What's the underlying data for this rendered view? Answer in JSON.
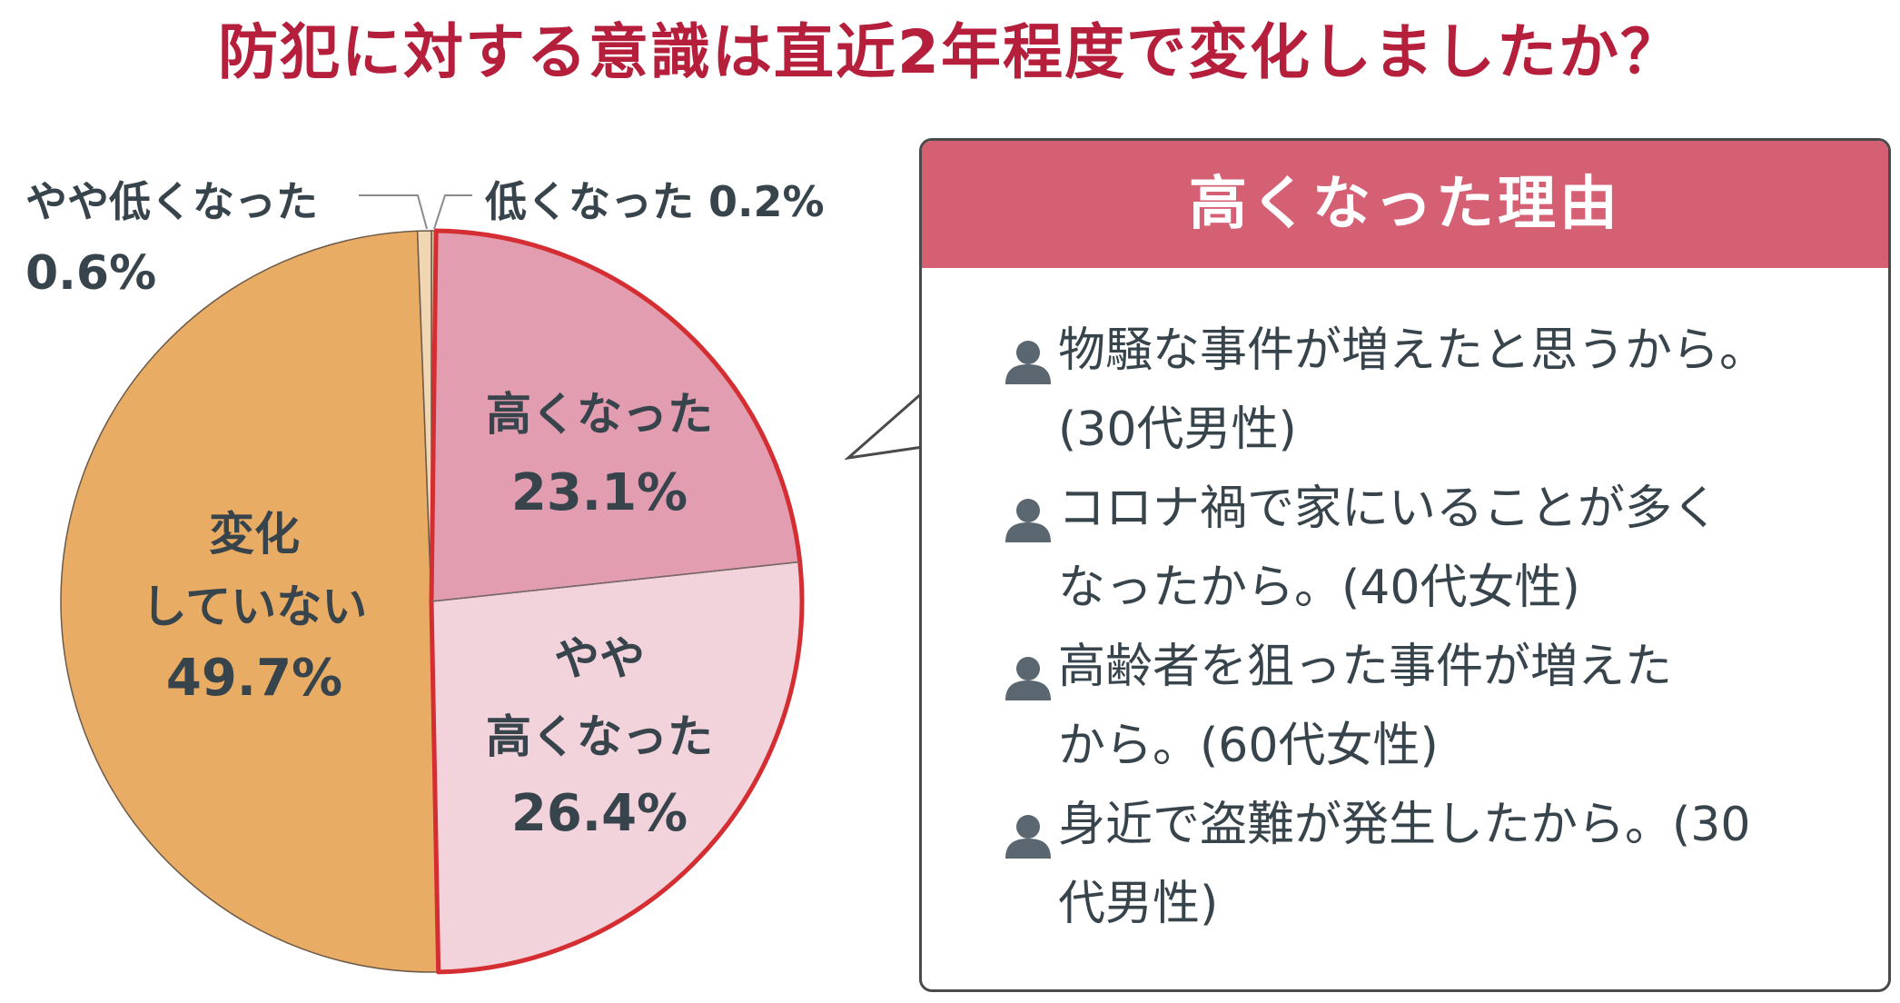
{
  "title": "防犯に対する意識は直近2年程度で変化しましたか？",
  "chart_data": {
    "type": "pie",
    "start_angle_deg": 0,
    "direction": "clockwise",
    "slices": [
      {
        "label": "低くなった",
        "value": 0.2,
        "value_text": "0.2%",
        "color": "#e8c8a0"
      },
      {
        "label": "高くなった",
        "value": 23.1,
        "value_text": "23.1%",
        "color": "#e29eb0"
      },
      {
        "label": "やや高くなった",
        "value": 26.4,
        "value_text": "26.4%",
        "color": "#f3d3db"
      },
      {
        "label": "変化していない",
        "value": 49.7,
        "value_text": "49.7%",
        "color": "#e9ac64"
      },
      {
        "label": "やや低くなった",
        "value": 0.6,
        "value_text": "0.6%",
        "color": "#f1d6b4"
      }
    ],
    "highlight_color": "#d42e32",
    "slice_text": {
      "high": [
        "高くなった",
        "23.1%"
      ],
      "somewhat_high": [
        "やや",
        "高くなった",
        "26.4%"
      ],
      "no_change": [
        "変化",
        "していない",
        "49.7%"
      ]
    },
    "outer_text": {
      "somewhat_low_label": "やや低くなった",
      "somewhat_low_value": "0.6%",
      "low_label": "低くなった 0.2%"
    }
  },
  "callout": {
    "title": "高くなった理由",
    "icon": "person-icon",
    "icon_color": "#5a6670",
    "reasons": [
      [
        "物騒な事件が増えたと思うから。",
        "(30代男性)"
      ],
      [
        "コロナ禍で家にいることが多く",
        "なったから。(40代女性)"
      ],
      [
        "高齢者を狙った事件が増えた",
        "から。(60代女性)"
      ],
      [
        "身近で盗難が発生したから。(30",
        "代男性)"
      ]
    ]
  }
}
